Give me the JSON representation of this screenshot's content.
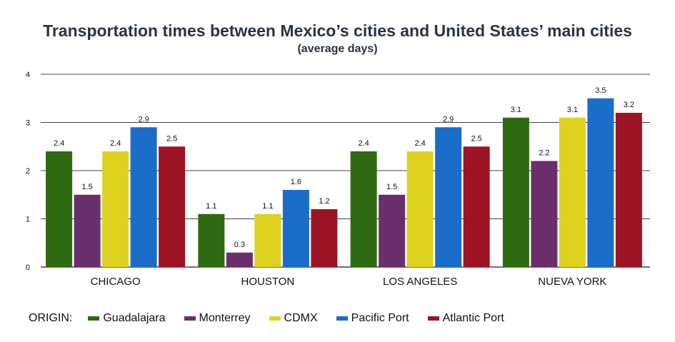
{
  "chart_data": {
    "type": "bar",
    "title": "Transportation times between Mexico’s cities and United States’ main cities",
    "subtitle": "(average days)",
    "xlabel": "",
    "ylabel": "",
    "ylim": [
      0,
      4
    ],
    "yticks": [
      "0",
      "1",
      "2",
      "3",
      "4"
    ],
    "grid": true,
    "legend_position": "bottom",
    "legend_title": "ORIGIN:",
    "categories": [
      "CHICAGO",
      "HOUSTON",
      "LOS ANGELES",
      "NUEVA YORK"
    ],
    "series": [
      {
        "name": "Guadalajara",
        "color": "#2e6a12",
        "values": [
          2.4,
          1.1,
          2.4,
          3.1
        ]
      },
      {
        "name": "Monterrey",
        "color": "#6a2f6a",
        "values": [
          1.5,
          0.3,
          1.5,
          2.2
        ]
      },
      {
        "name": "CDMX",
        "color": "#dcd21e",
        "values": [
          2.4,
          1.1,
          2.4,
          3.1
        ]
      },
      {
        "name": "Pacific Port",
        "color": "#1a6dc8",
        "values": [
          2.9,
          1.6,
          2.9,
          3.5
        ]
      },
      {
        "name": "Atlantic Port",
        "color": "#9c1424",
        "values": [
          2.5,
          1.2,
          2.5,
          3.2
        ]
      }
    ]
  }
}
